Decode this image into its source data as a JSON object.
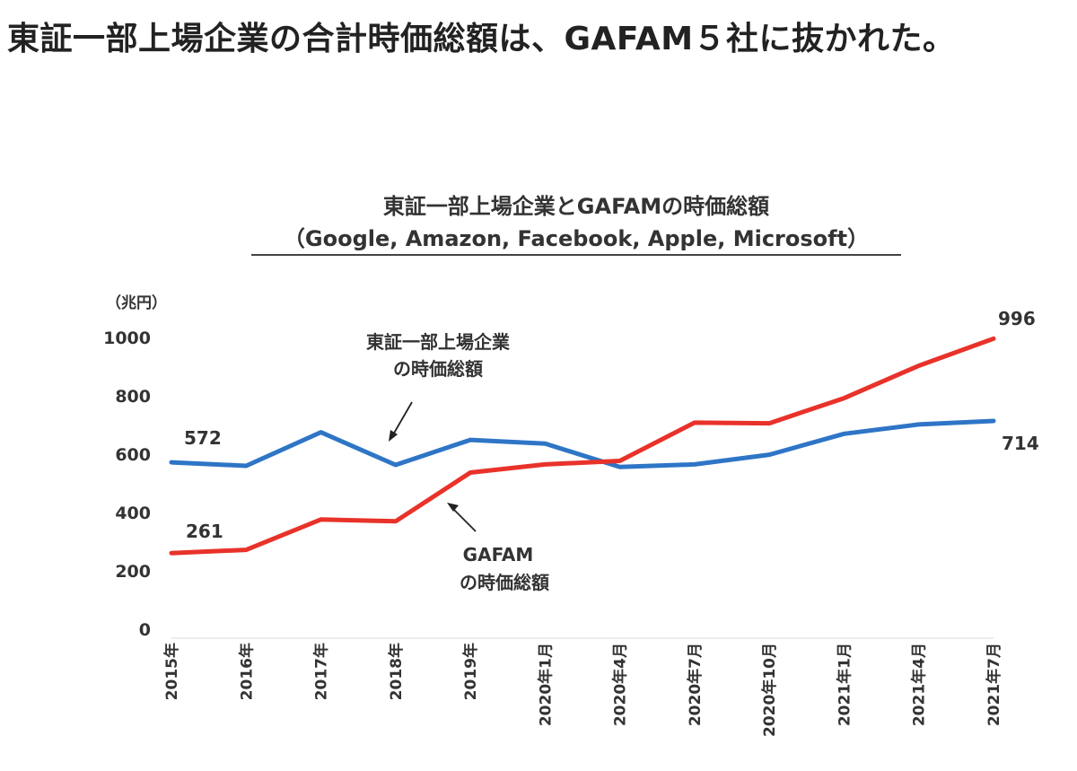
{
  "page": {
    "title": "東証一部上場企業の合計時価総額は、GAFAM５社に抜かれた。"
  },
  "chart_data": {
    "type": "line",
    "title_line1": "東証一部上場企業とGAFAMの時価総額",
    "title_line2": "（Google, Amazon, Facebook, Apple, Microsoft）",
    "unit_label": "（兆円）",
    "ylim": [
      0,
      1000
    ],
    "yticks": [
      "0",
      "200",
      "400",
      "600",
      "800",
      "1000"
    ],
    "categories": [
      "2015年",
      "2016年",
      "2017年",
      "2018年",
      "2019年",
      "2020年1月",
      "2020年4月",
      "2020年7月",
      "2020年10月",
      "2021年1月",
      "2021年4月",
      "2021年7月"
    ],
    "series": [
      {
        "name": "東証一部上場企業の時価総額",
        "color": "#2e75c6",
        "values": [
          572,
          560,
          675,
          563,
          649,
          636,
          556,
          565,
          598,
          670,
          702,
          714
        ]
      },
      {
        "name": "GAFAMの時価総額",
        "color": "#e8322a",
        "values": [
          261,
          272,
          376,
          370,
          537,
          565,
          577,
          708,
          706,
          792,
          903,
          996
        ]
      }
    ],
    "data_labels": [
      "572",
      "261",
      "996",
      "714"
    ],
    "annotations": {
      "tse_line1": "東証一部上場企業",
      "tse_line2": "の時価総額",
      "gafam_line1": "GAFAM",
      "gafam_line2": "の時価総額"
    }
  }
}
